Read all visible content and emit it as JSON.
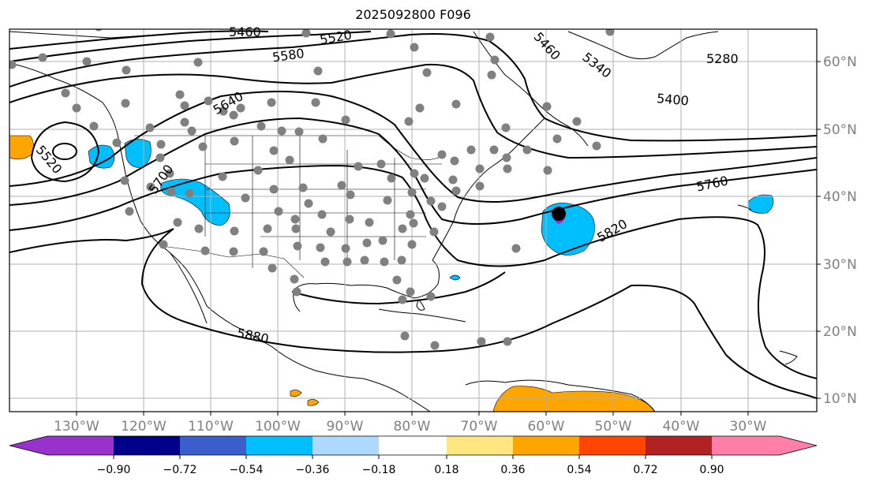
{
  "title": "2025092800 F096",
  "lon_labels": [
    "130°W",
    "120°W",
    "110°W",
    "100°W",
    "90°W",
    "80°W",
    "70°W",
    "60°W",
    "50°W",
    "40°W",
    "30°W"
  ],
  "lat_labels": [
    "60°N",
    "50°N",
    "40°N",
    "30°N",
    "20°N",
    "10°N"
  ],
  "contour_labels": [
    "5460",
    "5520",
    "5580",
    "5640",
    "5460",
    "5340",
    "5280",
    "5400",
    "5760",
    "5820",
    "5880",
    "5520",
    "5700"
  ],
  "colorbar": {
    "ticks": [
      "−0.90",
      "−0.72",
      "−0.54",
      "−0.36",
      "−0.18",
      "0.18",
      "0.36",
      "0.54",
      "0.72",
      "0.90"
    ],
    "colors": [
      "#9932cc",
      "#00008b",
      "#3a5fcd",
      "#00bfff",
      "#add8ff",
      "#ffffff",
      "#ffe680",
      "#ffa500",
      "#ff4500",
      "#b22222",
      "#ff7fa8"
    ]
  }
}
